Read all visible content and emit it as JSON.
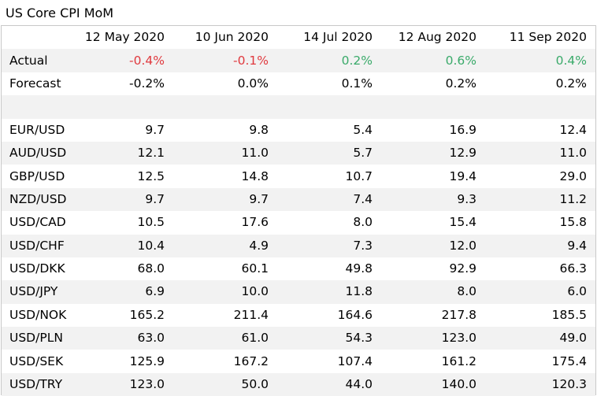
{
  "title": "US Core CPI MoM",
  "colors": {
    "negative": "#e0393e",
    "positive": "#3aaa6a",
    "stripe": "#f2f2f2"
  },
  "headers": [
    "12 May 2020",
    "10 Jun 2020",
    "14 Jul 2020",
    "12 Aug 2020",
    "11 Sep 2020"
  ],
  "actual": {
    "label": "Actual",
    "values": [
      "-0.4%",
      "-0.1%",
      "0.2%",
      "0.6%",
      "0.4%"
    ]
  },
  "forecast": {
    "label": "Forecast",
    "values": [
      "-0.2%",
      "0.0%",
      "0.1%",
      "0.2%",
      "0.2%"
    ]
  },
  "pairs": [
    {
      "label": "EUR/USD",
      "values": [
        "9.7",
        "9.8",
        "5.4",
        "16.9",
        "12.4"
      ]
    },
    {
      "label": "AUD/USD",
      "values": [
        "12.1",
        "11.0",
        "5.7",
        "12.9",
        "11.0"
      ]
    },
    {
      "label": "GBP/USD",
      "values": [
        "12.5",
        "14.8",
        "10.7",
        "19.4",
        "29.0"
      ]
    },
    {
      "label": "NZD/USD",
      "values": [
        "9.7",
        "9.7",
        "7.4",
        "9.3",
        "11.2"
      ]
    },
    {
      "label": "USD/CAD",
      "values": [
        "10.5",
        "17.6",
        "8.0",
        "15.4",
        "15.8"
      ]
    },
    {
      "label": "USD/CHF",
      "values": [
        "10.4",
        "4.9",
        "7.3",
        "12.0",
        "9.4"
      ]
    },
    {
      "label": "USD/DKK",
      "values": [
        "68.0",
        "60.1",
        "49.8",
        "92.9",
        "66.3"
      ]
    },
    {
      "label": "USD/JPY",
      "values": [
        "6.9",
        "10.0",
        "11.8",
        "8.0",
        "6.0"
      ]
    },
    {
      "label": "USD/NOK",
      "values": [
        "165.2",
        "211.4",
        "164.6",
        "217.8",
        "185.5"
      ]
    },
    {
      "label": "USD/PLN",
      "values": [
        "63.0",
        "61.0",
        "54.3",
        "123.0",
        "49.0"
      ]
    },
    {
      "label": "USD/SEK",
      "values": [
        "125.9",
        "167.2",
        "107.4",
        "161.2",
        "175.4"
      ]
    },
    {
      "label": "USD/TRY",
      "values": [
        "123.0",
        "50.0",
        "44.0",
        "140.0",
        "120.3"
      ]
    }
  ]
}
